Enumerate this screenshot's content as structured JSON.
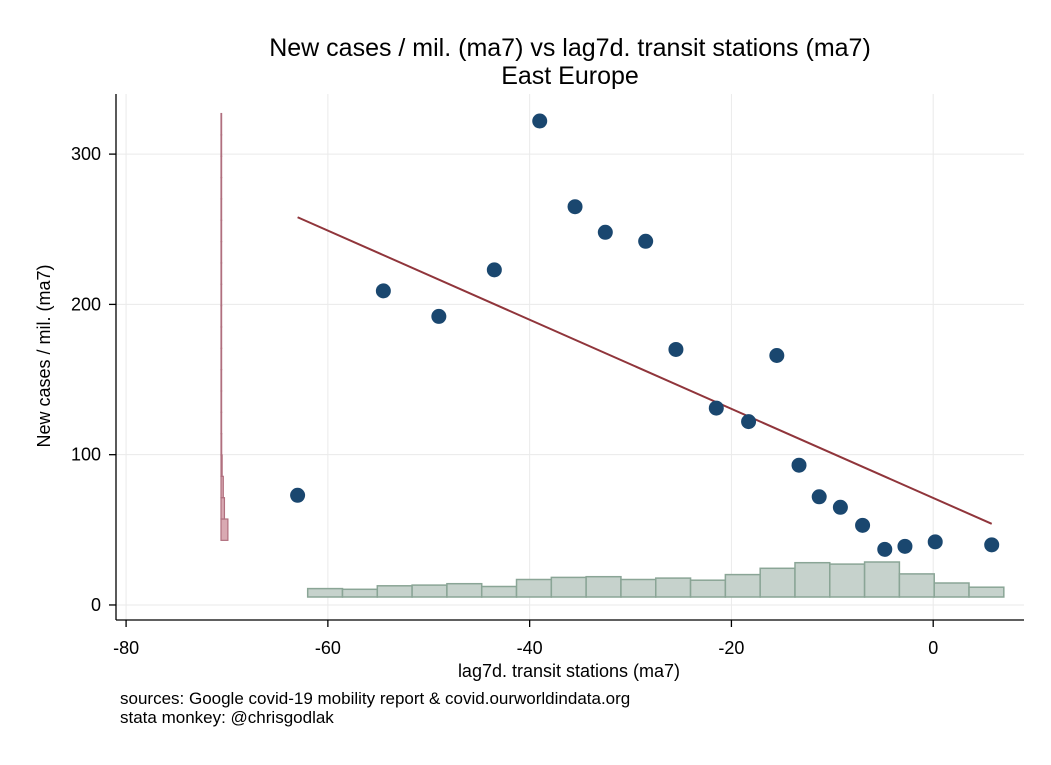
{
  "chart_data": {
    "type": "scatter",
    "title": "New cases / mil. (ma7) vs lag7d. transit stations (ma7)",
    "subtitle": "East Europe",
    "xlabel": "lag7d. transit stations (ma7)",
    "ylabel": "New cases / mil. (ma7)",
    "xlim": [
      -81,
      9
    ],
    "ylim": [
      -10,
      340
    ],
    "xticks": [
      -80,
      -60,
      -40,
      -20,
      0
    ],
    "yticks": [
      0,
      100,
      200,
      300
    ],
    "grid": true,
    "points": [
      {
        "x": -63,
        "y": 73
      },
      {
        "x": -54.5,
        "y": 209
      },
      {
        "x": -49,
        "y": 192
      },
      {
        "x": -43.5,
        "y": 223
      },
      {
        "x": -39,
        "y": 322
      },
      {
        "x": -35.5,
        "y": 265
      },
      {
        "x": -32.5,
        "y": 248
      },
      {
        "x": -28.5,
        "y": 242
      },
      {
        "x": -25.5,
        "y": 170
      },
      {
        "x": -21.5,
        "y": 131
      },
      {
        "x": -18.3,
        "y": 122
      },
      {
        "x": -15.5,
        "y": 166
      },
      {
        "x": -13.3,
        "y": 93
      },
      {
        "x": -11.3,
        "y": 72
      },
      {
        "x": -9.2,
        "y": 65
      },
      {
        "x": -7,
        "y": 53
      },
      {
        "x": -4.8,
        "y": 37
      },
      {
        "x": -2.8,
        "y": 39
      },
      {
        "x": 0.2,
        "y": 42
      },
      {
        "x": 5.8,
        "y": 40
      }
    ],
    "fit_line": {
      "x": [
        -63,
        5.8
      ],
      "y": [
        258,
        54
      ]
    },
    "x_histogram": {
      "bin_start": -62,
      "bin_width": 3.45,
      "values": [
        1.2,
        1.1,
        1.6,
        1.7,
        1.9,
        1.5,
        2.5,
        2.8,
        2.9,
        2.5,
        2.7,
        2.4,
        3.2,
        4.1,
        4.9,
        4.7,
        5.0,
        3.3,
        2.0,
        1.4
      ]
    },
    "y_histogram": {
      "bin_start": 43,
      "bin_width": 14.2,
      "values": [
        6,
        3,
        2,
        1,
        0.6,
        0.4,
        0.3,
        0.3,
        0.4,
        0.3,
        0.3,
        0.2,
        0.2,
        0.2,
        0.2,
        0.1,
        0.1,
        0.1,
        0.1,
        0.1
      ]
    },
    "colors": {
      "marker": "#1a476f",
      "fit": "#90353b",
      "x_hist_fill": "#c6d2cc",
      "x_hist_edge": "#8aa596",
      "y_hist_fill": "#d9a9b2",
      "y_hist_edge": "#b06f7e",
      "grid": "#eaeaea"
    }
  },
  "notes": {
    "source": "sources: Google covid-19 mobility report & covid.ourworldindata.org",
    "credit": "stata monkey: @chrisgodlak"
  }
}
